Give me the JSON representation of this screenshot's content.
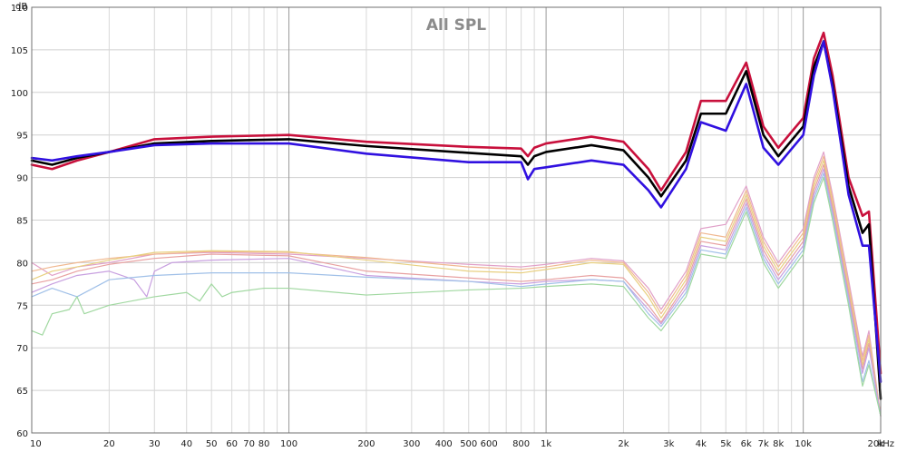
{
  "chart_data": {
    "type": "line",
    "title": "All SPL",
    "ylabel": "dB",
    "xunit": "kHz",
    "xscale": "log",
    "xlim": [
      10,
      20000
    ],
    "ylim": [
      60,
      110
    ],
    "grid": true,
    "x_tick_labels": [
      "10",
      "20",
      "30",
      "40",
      "50",
      "60",
      "70",
      "80",
      "100",
      "200",
      "300",
      "400",
      "500",
      "600",
      "800",
      "1k",
      "2k",
      "3k",
      "4k",
      "5k",
      "6k",
      "7k",
      "8k",
      "10k",
      "20k"
    ],
    "x_tick_values": [
      10,
      20,
      30,
      40,
      50,
      60,
      70,
      80,
      100,
      200,
      300,
      400,
      500,
      600,
      800,
      1000,
      2000,
      3000,
      4000,
      5000,
      6000,
      7000,
      8000,
      10000,
      20000
    ],
    "y_ticks": [
      60,
      65,
      70,
      75,
      80,
      85,
      90,
      95,
      100,
      105,
      110
    ],
    "series": [
      {
        "color": "#e0a0c8",
        "width": 1.2,
        "x": [
          10,
          12,
          15,
          20,
          30,
          50,
          100,
          200,
          500,
          800,
          1000,
          1500,
          2000,
          2500,
          2800,
          3500,
          4000,
          5000,
          6000,
          7000,
          8000,
          10000,
          11000,
          12000,
          13000,
          15000,
          17000,
          18000,
          20000
        ],
        "y": [
          80.0,
          78.5,
          79.5,
          80.0,
          81.0,
          81.2,
          81.0,
          80.5,
          79.8,
          79.5,
          79.8,
          80.5,
          80.2,
          77.0,
          74.5,
          79.0,
          84.0,
          84.5,
          89.0,
          83.0,
          80.0,
          84.0,
          90.0,
          93.0,
          88.0,
          78.0,
          69.0,
          72.0,
          62.0
        ]
      },
      {
        "color": "#f0b890",
        "width": 1.2,
        "x": [
          10,
          12,
          15,
          20,
          30,
          50,
          100,
          200,
          500,
          800,
          1000,
          1500,
          2000,
          2500,
          2800,
          3500,
          4000,
          5000,
          6000,
          7000,
          8000,
          10000,
          11000,
          12000,
          13000,
          15000,
          17000,
          18000,
          20000
        ],
        "y": [
          79.0,
          79.5,
          80.0,
          80.5,
          81.0,
          81.3,
          81.2,
          80.6,
          79.5,
          79.2,
          79.5,
          80.3,
          80.0,
          76.5,
          74.0,
          78.5,
          83.5,
          83.0,
          88.5,
          82.5,
          79.5,
          83.5,
          89.5,
          92.5,
          87.5,
          77.5,
          68.5,
          71.5,
          62.0
        ]
      },
      {
        "color": "#e8d080",
        "width": 1.2,
        "x": [
          10,
          12,
          15,
          20,
          30,
          50,
          100,
          200,
          500,
          800,
          1000,
          1500,
          2000,
          2500,
          2800,
          3500,
          4000,
          5000,
          6000,
          7000,
          8000,
          10000,
          11000,
          12000,
          13000,
          15000,
          17000,
          18000,
          20000
        ],
        "y": [
          78.0,
          79.0,
          79.5,
          80.3,
          81.2,
          81.4,
          81.3,
          80.3,
          79.0,
          78.8,
          79.2,
          80.0,
          79.8,
          76.0,
          73.5,
          78.0,
          83.0,
          82.5,
          88.0,
          82.0,
          79.0,
          83.0,
          89.0,
          92.0,
          87.0,
          77.0,
          68.0,
          71.0,
          62.0
        ]
      },
      {
        "color": "#e8a0a0",
        "width": 1.2,
        "x": [
          10,
          12,
          15,
          20,
          30,
          50,
          100,
          200,
          500,
          800,
          1000,
          1500,
          2000,
          2500,
          2800,
          3500,
          4000,
          5000,
          6000,
          7000,
          8000,
          10000,
          11000,
          12000,
          13000,
          15000,
          17000,
          18000,
          20000
        ],
        "y": [
          77.5,
          78.0,
          79.0,
          79.8,
          80.5,
          81.0,
          80.8,
          79.0,
          78.2,
          77.8,
          78.0,
          78.5,
          78.2,
          75.0,
          73.0,
          77.5,
          82.5,
          82.0,
          87.5,
          81.5,
          78.5,
          82.5,
          88.5,
          91.5,
          86.5,
          76.5,
          67.5,
          70.5,
          62.0
        ]
      },
      {
        "color": "#c8a0e0",
        "width": 1.2,
        "x": [
          10,
          12,
          15,
          20,
          25,
          28,
          30,
          35,
          50,
          100,
          200,
          500,
          800,
          1000,
          1500,
          2000,
          2500,
          2800,
          3500,
          4000,
          5000,
          6000,
          7000,
          8000,
          10000,
          11000,
          12000,
          13000,
          15000,
          17000,
          18000,
          20000
        ],
        "y": [
          76.5,
          77.5,
          78.5,
          79.0,
          78.0,
          76.0,
          79.0,
          80.0,
          80.3,
          80.5,
          78.5,
          77.8,
          77.5,
          77.8,
          78.0,
          77.8,
          74.5,
          72.8,
          77.0,
          82.0,
          81.5,
          87.0,
          81.0,
          78.0,
          82.0,
          88.0,
          91.0,
          86.0,
          76.0,
          67.0,
          70.0,
          62.0
        ]
      },
      {
        "color": "#a0c0e8",
        "width": 1.2,
        "x": [
          10,
          12,
          15,
          20,
          30,
          50,
          100,
          200,
          500,
          800,
          1000,
          1500,
          2000,
          2500,
          2800,
          3500,
          4000,
          5000,
          6000,
          7000,
          8000,
          10000,
          11000,
          12000,
          13000,
          15000,
          17000,
          18000,
          20000
        ],
        "y": [
          76.0,
          77.0,
          76.0,
          78.0,
          78.5,
          78.8,
          78.8,
          78.3,
          77.8,
          77.2,
          77.5,
          78.0,
          77.8,
          74.0,
          72.5,
          76.5,
          81.5,
          81.0,
          86.5,
          80.5,
          77.5,
          81.5,
          87.5,
          90.5,
          85.5,
          75.5,
          66.0,
          68.5,
          62.0
        ]
      },
      {
        "color": "#a0d8a0",
        "width": 1.2,
        "x": [
          10,
          11,
          12,
          14,
          15,
          16,
          20,
          30,
          40,
          45,
          50,
          55,
          60,
          80,
          100,
          200,
          500,
          800,
          1000,
          1500,
          2000,
          2500,
          2800,
          3500,
          4000,
          5000,
          6000,
          7000,
          8000,
          10000,
          11000,
          12000,
          13000,
          15000,
          17000,
          18000,
          20000
        ],
        "y": [
          72.0,
          71.5,
          74.0,
          74.5,
          76.0,
          74.0,
          75.0,
          76.0,
          76.5,
          75.5,
          77.5,
          76.0,
          76.5,
          77.0,
          77.0,
          76.2,
          76.8,
          77.0,
          77.2,
          77.5,
          77.2,
          73.5,
          72.0,
          76.0,
          81.0,
          80.5,
          86.0,
          80.0,
          77.0,
          81.0,
          87.0,
          90.0,
          85.0,
          75.0,
          65.5,
          68.0,
          62.0
        ]
      },
      {
        "color": "#c8103c",
        "width": 2.6,
        "x": [
          10,
          12,
          15,
          20,
          30,
          50,
          100,
          200,
          500,
          800,
          850,
          900,
          1000,
          1500,
          2000,
          2500,
          2800,
          3500,
          4000,
          5000,
          6000,
          7000,
          8000,
          10000,
          11000,
          12000,
          13000,
          15000,
          17000,
          18000,
          20000
        ],
        "y": [
          91.5,
          91.0,
          92.0,
          93.0,
          94.5,
          94.8,
          95.0,
          94.2,
          93.6,
          93.4,
          92.5,
          93.5,
          94.0,
          94.8,
          94.2,
          91.0,
          88.5,
          93.0,
          99.0,
          99.0,
          103.5,
          96.0,
          93.5,
          97.0,
          104.0,
          107.0,
          102.0,
          90.0,
          85.5,
          86.0,
          67.0
        ]
      },
      {
        "color": "#000000",
        "width": 2.6,
        "x": [
          10,
          12,
          15,
          20,
          30,
          50,
          100,
          200,
          500,
          800,
          850,
          900,
          1000,
          1500,
          2000,
          2500,
          2800,
          3500,
          4000,
          5000,
          6000,
          7000,
          8000,
          10000,
          11000,
          12000,
          13000,
          15000,
          17000,
          18000,
          20000
        ],
        "y": [
          92.0,
          91.5,
          92.3,
          93.0,
          94.0,
          94.3,
          94.5,
          93.7,
          92.9,
          92.5,
          91.5,
          92.5,
          93.0,
          93.8,
          93.2,
          90.0,
          87.8,
          92.0,
          97.5,
          97.5,
          102.5,
          95.0,
          92.5,
          96.0,
          103.0,
          106.0,
          101.0,
          89.0,
          83.5,
          84.5,
          64.0
        ]
      },
      {
        "color": "#3010e0",
        "width": 2.6,
        "x": [
          10,
          12,
          15,
          20,
          30,
          50,
          100,
          200,
          500,
          800,
          850,
          900,
          1000,
          1500,
          2000,
          2500,
          2800,
          3500,
          4000,
          5000,
          6000,
          7000,
          8000,
          10000,
          11000,
          12000,
          13000,
          15000,
          17000,
          18000,
          20000
        ],
        "y": [
          92.3,
          92.0,
          92.5,
          93.0,
          93.8,
          94.0,
          94.0,
          92.8,
          91.8,
          91.8,
          89.8,
          91.0,
          91.2,
          92.0,
          91.5,
          88.5,
          86.5,
          91.0,
          96.5,
          95.5,
          101.0,
          93.5,
          91.5,
          95.0,
          102.0,
          106.0,
          100.5,
          88.0,
          82.0,
          82.0,
          66.0
        ]
      }
    ]
  }
}
